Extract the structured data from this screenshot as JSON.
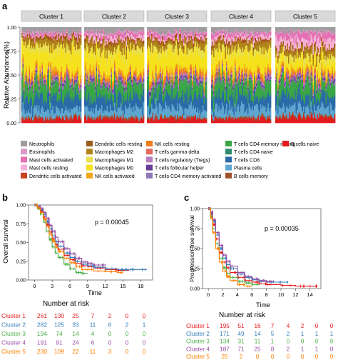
{
  "panel_a": {
    "label": "a",
    "chart_data": {
      "type": "bar",
      "subtype": "stacked-100pct",
      "ylabel": "Relative Abundance(%)",
      "ylim": [
        0,
        1
      ],
      "yticks": [
        "0.00",
        "0.25",
        "0.50",
        "0.75",
        "1.00"
      ],
      "facets": [
        "Cluster 1",
        "Cluster 2",
        "Cluster 3",
        "Cluster 4",
        "Cluster 5"
      ],
      "cell_types": [
        {
          "name": "Neutrophils",
          "color": "#9e9e9e"
        },
        {
          "name": "Eosinophils",
          "color": "#d99ac4"
        },
        {
          "name": "Mast cells activated",
          "color": "#e56fb2"
        },
        {
          "name": "Mast cells resting",
          "color": "#f3b2d5"
        },
        {
          "name": "Dendritic cells activated",
          "color": "#c7421e"
        },
        {
          "name": "Dendritic cells resting",
          "color": "#9a5b1e"
        },
        {
          "name": "Macrophages M2",
          "color": "#b1841b"
        },
        {
          "name": "Macrophages M1",
          "color": "#e9e04d"
        },
        {
          "name": "Macrophages M0",
          "color": "#f6e11d"
        },
        {
          "name": "NK cells activated",
          "color": "#f2a719"
        },
        {
          "name": "NK cells resting",
          "color": "#ef7c1a"
        },
        {
          "name": "T cells gamma delta",
          "color": "#e3695c"
        },
        {
          "name": "T cells regulatory (Tregs)",
          "color": "#b57fbe"
        },
        {
          "name": "T cells follicular helper",
          "color": "#6a3d9a"
        },
        {
          "name": "T cells CD4 memory activated",
          "color": "#8f78b6"
        },
        {
          "name": "T cells CD4 memory resting",
          "color": "#3aa646"
        },
        {
          "name": "T cells CD4 naive",
          "color": "#2e8c6c"
        },
        {
          "name": "T cells CD8",
          "color": "#2b6aa8"
        },
        {
          "name": "Plasma cells",
          "color": "#5da6cf"
        },
        {
          "name": "B cells memory",
          "color": "#a0522d"
        },
        {
          "name": "B cells naive",
          "color": "#e41a1c"
        }
      ],
      "mean_fractions_by_cluster": [
        [
          0.05,
          0.02,
          0.02,
          0.01,
          0.01,
          0.02,
          0.07,
          0.06,
          0.22,
          0.03,
          0.02,
          0.02,
          0.02,
          0.02,
          0.02,
          0.13,
          0.02,
          0.12,
          0.08,
          0.02,
          0.04
        ],
        [
          0.05,
          0.02,
          0.03,
          0.04,
          0.01,
          0.02,
          0.07,
          0.06,
          0.17,
          0.03,
          0.02,
          0.02,
          0.02,
          0.02,
          0.02,
          0.13,
          0.02,
          0.12,
          0.09,
          0.02,
          0.04
        ],
        [
          0.05,
          0.02,
          0.03,
          0.02,
          0.01,
          0.02,
          0.07,
          0.06,
          0.19,
          0.03,
          0.02,
          0.02,
          0.02,
          0.02,
          0.02,
          0.13,
          0.02,
          0.12,
          0.09,
          0.02,
          0.04
        ],
        [
          0.05,
          0.02,
          0.03,
          0.04,
          0.01,
          0.02,
          0.07,
          0.06,
          0.16,
          0.03,
          0.02,
          0.02,
          0.02,
          0.02,
          0.02,
          0.13,
          0.02,
          0.12,
          0.09,
          0.02,
          0.04
        ],
        [
          0.05,
          0.02,
          0.06,
          0.08,
          0.01,
          0.02,
          0.07,
          0.06,
          0.1,
          0.03,
          0.02,
          0.02,
          0.02,
          0.02,
          0.02,
          0.12,
          0.02,
          0.12,
          0.08,
          0.02,
          0.06
        ]
      ],
      "grid": false,
      "legend_position": "bottom"
    }
  },
  "panel_b": {
    "label": "b",
    "chart_data": {
      "type": "line",
      "subtype": "kaplan-meier",
      "xlabel": "Time",
      "ylabel": "Overall survival",
      "xticks": [
        "0",
        "3",
        "6",
        "9",
        "12",
        "15",
        "18"
      ],
      "xlim": [
        -1,
        20
      ],
      "ylim": [
        0,
        1
      ],
      "yticks": [
        "0.00",
        "0.25",
        "0.50",
        "0.75",
        "1.00"
      ],
      "pvalue": "p = 0.00045",
      "series": [
        {
          "name": "Cluster 1",
          "color": "#e41a1c",
          "x": [
            0,
            0.5,
            1,
            1.5,
            2,
            2.5,
            3,
            3.5,
            4,
            5,
            6,
            7,
            8,
            9,
            10,
            12,
            14,
            16
          ],
          "y": [
            1.0,
            0.97,
            0.92,
            0.84,
            0.74,
            0.64,
            0.55,
            0.47,
            0.41,
            0.33,
            0.27,
            0.22,
            0.19,
            0.18,
            0.16,
            0.14,
            0.13,
            0.13
          ]
        },
        {
          "name": "Cluster 2",
          "color": "#377eb8",
          "x": [
            0,
            0.5,
            1,
            1.5,
            2,
            2.5,
            3,
            3.5,
            4,
            5,
            6,
            7,
            8,
            9,
            10,
            12,
            14,
            16,
            18,
            19
          ],
          "y": [
            1.0,
            0.98,
            0.94,
            0.87,
            0.78,
            0.68,
            0.59,
            0.51,
            0.45,
            0.36,
            0.3,
            0.25,
            0.21,
            0.19,
            0.17,
            0.15,
            0.14,
            0.14,
            0.14,
            0.14
          ]
        },
        {
          "name": "Cluster 3",
          "color": "#4daf4a",
          "x": [
            0,
            0.5,
            1,
            1.5,
            2,
            2.5,
            3,
            3.5,
            4,
            5,
            6,
            7,
            8,
            9
          ],
          "y": [
            1.0,
            0.95,
            0.88,
            0.77,
            0.65,
            0.54,
            0.44,
            0.36,
            0.3,
            0.21,
            0.15,
            0.1,
            0.09,
            0.09
          ]
        },
        {
          "name": "Cluster 4",
          "color": "#984ea3",
          "x": [
            0,
            0.5,
            1,
            1.5,
            2,
            2.5,
            3,
            3.5,
            4,
            5,
            6,
            7,
            8,
            9,
            10,
            11,
            12
          ],
          "y": [
            1.0,
            0.98,
            0.95,
            0.9,
            0.82,
            0.73,
            0.65,
            0.57,
            0.51,
            0.42,
            0.35,
            0.29,
            0.24,
            0.22,
            0.2,
            0.2,
            0.2
          ]
        },
        {
          "name": "Cluster 5",
          "color": "#ff7f00",
          "x": [
            0,
            0.5,
            1,
            1.5,
            2,
            2.5,
            3,
            3.5,
            4,
            5,
            6,
            7,
            8,
            10,
            12,
            14,
            15
          ],
          "y": [
            1.0,
            0.96,
            0.9,
            0.81,
            0.71,
            0.61,
            0.52,
            0.44,
            0.38,
            0.29,
            0.23,
            0.18,
            0.14,
            0.12,
            0.11,
            0.1,
            0.1
          ]
        }
      ],
      "risk_table": {
        "title": "Number at risk",
        "rows": [
          {
            "name": "Cluster 1",
            "color": "#e41a1c",
            "counts": [
              "261",
              "130",
              "25",
              "7",
              "2",
              "0",
              "0"
            ]
          },
          {
            "name": "Cluster 2",
            "color": "#377eb8",
            "counts": [
              "282",
              "125",
              "33",
              "11",
              "6",
              "2",
              "1"
            ]
          },
          {
            "name": "Cluster 3",
            "color": "#4daf4a",
            "counts": [
              "194",
              "74",
              "14",
              "4",
              "0",
              "0",
              "0"
            ]
          },
          {
            "name": "Cluster 4",
            "color": "#984ea3",
            "counts": [
              "191",
              "91",
              "24",
              "6",
              "0",
              "0",
              "0"
            ]
          },
          {
            "name": "Cluster 5",
            "color": "#ff7f00",
            "counts": [
              "230",
              "109",
              "22",
              "11",
              "3",
              "0",
              "0"
            ]
          }
        ]
      }
    }
  },
  "panel_c": {
    "label": "c",
    "chart_data": {
      "type": "line",
      "subtype": "kaplan-meier",
      "xlabel": "Time",
      "ylabel": "Progression free survival",
      "xticks": [
        "0",
        "2",
        "4",
        "6",
        "8",
        "10",
        "12",
        "14"
      ],
      "xlim": [
        -0.8,
        15.5
      ],
      "ylim": [
        0,
        1
      ],
      "yticks": [
        "0.00",
        "0.25",
        "0.50",
        "0.75",
        "1.00"
      ],
      "pvalue": "p = 0.00035",
      "series": [
        {
          "name": "Cluster 1",
          "color": "#e41a1c",
          "x": [
            0,
            0.3,
            0.6,
            1,
            1.5,
            2,
            2.5,
            3,
            4,
            5,
            6,
            7,
            8,
            10,
            12,
            14,
            15
          ],
          "y": [
            1.0,
            0.93,
            0.8,
            0.62,
            0.45,
            0.33,
            0.26,
            0.2,
            0.14,
            0.1,
            0.08,
            0.06,
            0.05,
            0.04,
            0.03,
            0.03,
            0.03
          ]
        },
        {
          "name": "Cluster 2",
          "color": "#377eb8",
          "x": [
            0,
            0.3,
            0.6,
            1,
            1.5,
            2,
            2.5,
            3,
            4,
            5,
            6,
            7,
            8,
            10,
            11
          ],
          "y": [
            1.0,
            0.95,
            0.84,
            0.67,
            0.5,
            0.38,
            0.3,
            0.25,
            0.18,
            0.14,
            0.11,
            0.09,
            0.08,
            0.08,
            0.08
          ]
        },
        {
          "name": "Cluster 3",
          "color": "#4daf4a",
          "x": [
            0,
            0.3,
            0.6,
            1,
            1.5,
            2,
            2.5,
            3,
            4,
            5,
            6,
            7
          ],
          "y": [
            1.0,
            0.9,
            0.75,
            0.56,
            0.38,
            0.26,
            0.19,
            0.14,
            0.09,
            0.07,
            0.05,
            0.05
          ]
        },
        {
          "name": "Cluster 4",
          "color": "#984ea3",
          "x": [
            0,
            0.3,
            0.6,
            1,
            1.5,
            2,
            2.5,
            3,
            4,
            5,
            6,
            7,
            8,
            9
          ],
          "y": [
            1.0,
            0.96,
            0.86,
            0.7,
            0.54,
            0.42,
            0.34,
            0.28,
            0.2,
            0.15,
            0.12,
            0.1,
            0.09,
            0.09
          ]
        },
        {
          "name": "Cluster 5",
          "color": "#ff7f00",
          "x": [
            0,
            0.3,
            0.6,
            1,
            1.5,
            2,
            2.5,
            3,
            4,
            5,
            6
          ],
          "y": [
            1.0,
            0.88,
            0.7,
            0.5,
            0.33,
            0.22,
            0.15,
            0.1,
            0.05,
            0.03,
            0.03
          ]
        }
      ],
      "risk_table": {
        "title": "Number at risk",
        "rows": [
          {
            "name": "Cluster 1",
            "color": "#e41a1c",
            "counts": [
              "195",
              "51",
              "16",
              "7",
              "4",
              "2",
              "0",
              "0"
            ]
          },
          {
            "name": "Cluster 2",
            "color": "#377eb8",
            "counts": [
              "171",
              "49",
              "14",
              "5",
              "2",
              "1",
              "1",
              "1"
            ]
          },
          {
            "name": "Cluster 3",
            "color": "#4daf4a",
            "counts": [
              "134",
              "31",
              "11",
              "1",
              "0",
              "0",
              "0",
              "0"
            ]
          },
          {
            "name": "Cluster 4",
            "color": "#984ea3",
            "counts": [
              "187",
              "71",
              "25",
              "8",
              "2",
              "1",
              "1",
              "0"
            ]
          },
          {
            "name": "Cluster 5",
            "color": "#ff7f00",
            "counts": [
              "25",
              "2",
              "0",
              "0",
              "0",
              "0",
              "0",
              "0"
            ]
          }
        ]
      }
    }
  }
}
